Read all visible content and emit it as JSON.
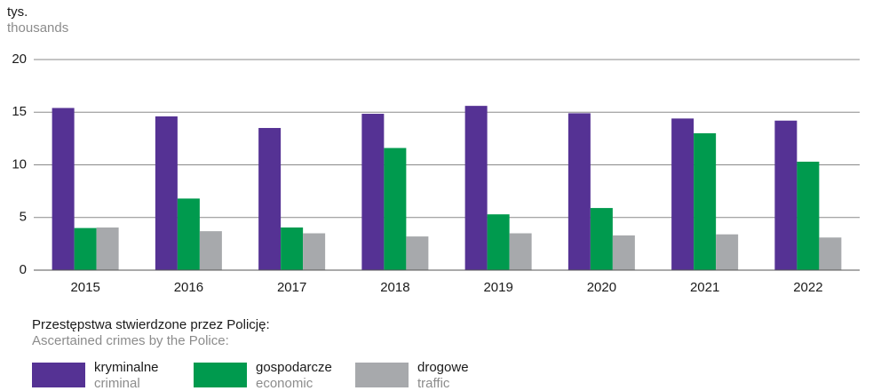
{
  "chart_data": {
    "type": "bar",
    "y_label": "tys.",
    "y_label_en": "thousands",
    "categories": [
      "2015",
      "2016",
      "2017",
      "2018",
      "2019",
      "2020",
      "2021",
      "2022"
    ],
    "series": [
      {
        "name": "kryminalne",
        "name_en": "criminal",
        "color": "#553294",
        "values": [
          15.4,
          14.6,
          13.5,
          14.85,
          15.6,
          14.9,
          14.4,
          14.2
        ]
      },
      {
        "name": "gospodarcze",
        "name_en": "economic",
        "color": "#009a4e",
        "values": [
          4.0,
          6.8,
          4.05,
          11.6,
          5.3,
          5.9,
          13.0,
          10.3
        ]
      },
      {
        "name": "drogowe",
        "name_en": "traffic",
        "color": "#a7a9ac",
        "values": [
          4.05,
          3.7,
          3.5,
          3.2,
          3.5,
          3.3,
          3.4,
          3.1
        ]
      }
    ],
    "ylim": [
      0,
      20
    ],
    "yticks": [
      0,
      5,
      10,
      15,
      20
    ],
    "grid": true,
    "legend_title": "Przestępstwa stwierdzone przez Policję:",
    "legend_title_en": "Ascertained crimes by the Police:"
  }
}
